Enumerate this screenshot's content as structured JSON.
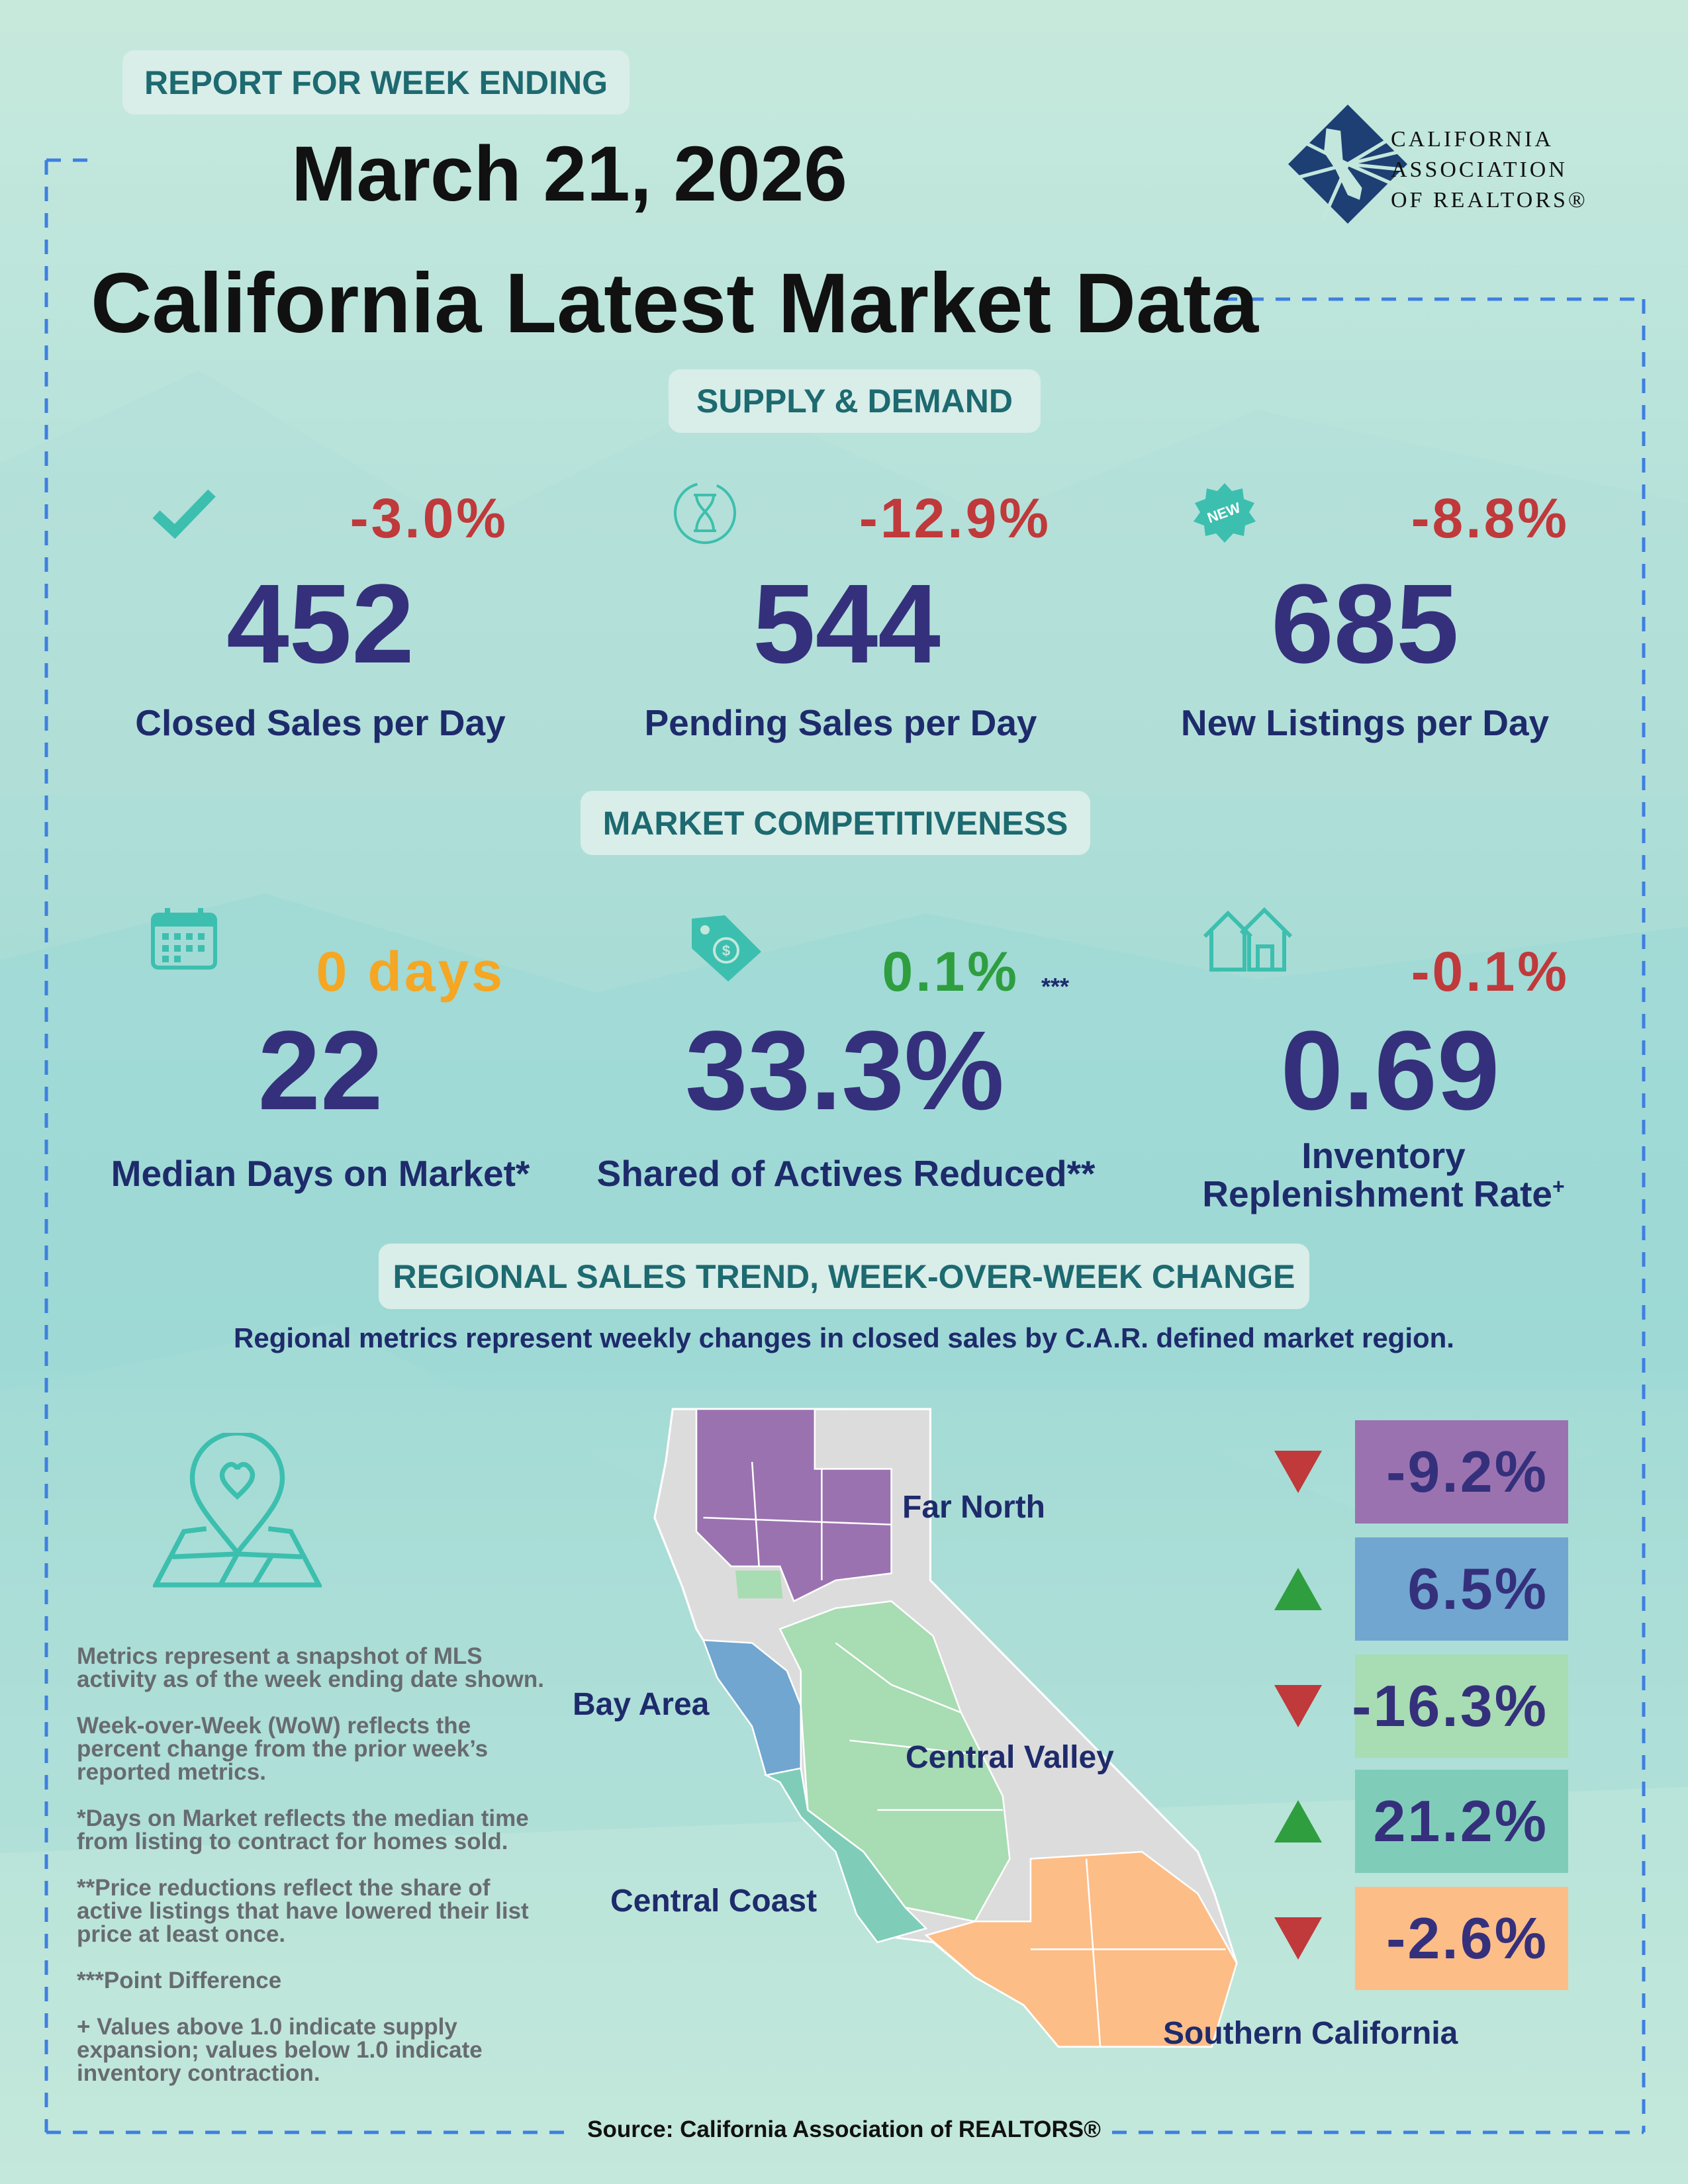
{
  "header": {
    "report_label": "REPORT FOR WEEK ENDING",
    "date": "March 21, 2026",
    "title": "California Latest Market Data",
    "logo": {
      "lines": [
        "CALIFORNIA",
        "ASSOCIATION",
        "OF REALTORS®"
      ],
      "color": "#1d3f73"
    }
  },
  "supply_demand": {
    "heading": "SUPPLY & DEMAND",
    "metrics": [
      {
        "icon": "checkmark-icon",
        "change": "-3.0%",
        "value": "452",
        "label": "Closed Sales per Day",
        "change_color": "#c0393b"
      },
      {
        "icon": "hourglass-icon",
        "change": "-12.9%",
        "value": "544",
        "label": "Pending Sales per Day",
        "change_color": "#c0393b"
      },
      {
        "icon": "new-badge-icon",
        "change": "-8.8%",
        "value": "685",
        "label": "New Listings per Day",
        "change_color": "#c0393b"
      }
    ]
  },
  "competitiveness": {
    "heading": "MARKET COMPETITIVENESS",
    "metrics": [
      {
        "icon": "calendar-icon",
        "change": "0 days",
        "value": "22",
        "label": "Median Days on Market*",
        "change_color": "#f5a623"
      },
      {
        "icon": "price-tag-icon",
        "change": "0.1%",
        "change_note": "***",
        "value": "33.3%",
        "label": "Shared of Actives Reduced**",
        "change_color": "#2e9e3f"
      },
      {
        "icon": "houses-icon",
        "change": "-0.1%",
        "value": "0.69",
        "label_line1": "Inventory",
        "label_line2": "Replenishment Rate",
        "label_sup": "+",
        "change_color": "#c0393b"
      }
    ]
  },
  "regional": {
    "heading": "REGIONAL SALES TREND, WEEK-OVER-WEEK CHANGE",
    "subtitle": "Regional metrics represent weekly changes in closed sales by C.A.R. defined market region.",
    "regions": [
      {
        "name": "Far North",
        "change": "-9.2%",
        "direction": "down",
        "color": "#9b72b0"
      },
      {
        "name": "Bay Area",
        "change": "6.5%",
        "direction": "up",
        "color": "#70a6d0"
      },
      {
        "name": "Central Valley",
        "change": "-16.3%",
        "direction": "down",
        "color": "#a8dcb2"
      },
      {
        "name": "Central Coast",
        "change": "21.2%",
        "direction": "up",
        "color": "#7fcdb9"
      },
      {
        "name": "Southern California",
        "change": "-2.6%",
        "direction": "down",
        "color": "#fdbd87"
      }
    ],
    "up_color": "#2e9e3f",
    "down_color": "#c0393b"
  },
  "notes": [
    "Metrics represent a snapshot of MLS activity as of the week ending date shown.",
    "Week-over-Week (WoW) reflects the percent change from the prior week’s reported metrics.",
    "*Days on Market reflects the median time from listing to contract for homes sold.",
    "**Price reductions reflect the share of active listings that have lowered their list price at least once.",
    "***Point Difference",
    "+ Values above 1.0 indicate supply expansion; values below 1.0 indicate inventory contraction."
  ],
  "source": "Source: California Association of REALTORS®"
}
